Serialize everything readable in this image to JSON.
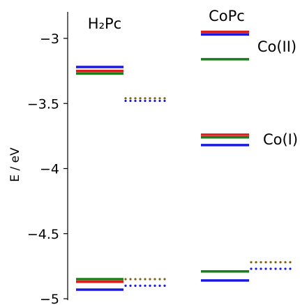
{
  "chart_data": {
    "type": "energy-level-diagram",
    "ylabel": "E / eV",
    "ylim": [
      -5.0,
      -2.8
    ],
    "yticks": [
      {
        "value": -3.0,
        "label": "−3"
      },
      {
        "value": -3.5,
        "label": "−3.5"
      },
      {
        "value": -4.0,
        "label": "−4"
      },
      {
        "value": -4.5,
        "label": "−4.5"
      },
      {
        "value": -5.0,
        "label": "−5"
      }
    ],
    "column_labels": [
      {
        "text": "H₂Pc"
      },
      {
        "text": "CoPc"
      }
    ],
    "annotations": [
      {
        "text": "Co(II)"
      },
      {
        "text": "Co(I)"
      }
    ],
    "colors": {
      "red": "#d62020",
      "green": "#1a7d1a",
      "blue": "#1a1adf",
      "olive": "#806010"
    },
    "levels": [
      {
        "column": "H2Pc",
        "style": "solid",
        "color": "blue",
        "energy": -3.22
      },
      {
        "column": "H2Pc",
        "style": "solid",
        "color": "red",
        "energy": -3.25
      },
      {
        "column": "H2Pc",
        "style": "solid",
        "color": "green",
        "energy": -3.27
      },
      {
        "column": "H2Pc",
        "style": "solid",
        "color": "green",
        "energy": -4.85
      },
      {
        "column": "H2Pc",
        "style": "solid",
        "color": "red",
        "energy": -4.87
      },
      {
        "column": "H2Pc",
        "style": "solid",
        "color": "blue",
        "energy": -4.93
      },
      {
        "column": "H2Pc",
        "style": "dotted",
        "color": "olive",
        "energy": -3.46
      },
      {
        "column": "H2Pc",
        "style": "dotted",
        "color": "blue",
        "energy": -3.48
      },
      {
        "column": "H2Pc",
        "style": "dotted",
        "color": "olive",
        "energy": -4.85
      },
      {
        "column": "H2Pc",
        "style": "dotted",
        "color": "blue",
        "energy": -4.9
      },
      {
        "column": "CoPc",
        "style": "solid",
        "color": "red",
        "energy": -2.95
      },
      {
        "column": "CoPc",
        "style": "solid",
        "color": "blue",
        "energy": -2.97
      },
      {
        "column": "CoPc",
        "style": "solid",
        "color": "green",
        "energy": -3.16
      },
      {
        "column": "CoPc",
        "style": "solid",
        "color": "red",
        "energy": -3.74
      },
      {
        "column": "CoPc",
        "style": "solid",
        "color": "green",
        "energy": -3.76
      },
      {
        "column": "CoPc",
        "style": "solid",
        "color": "blue",
        "energy": -3.82
      },
      {
        "column": "CoPc",
        "style": "solid",
        "color": "green",
        "energy": -4.79
      },
      {
        "column": "CoPc",
        "style": "solid",
        "color": "blue",
        "energy": -4.86
      },
      {
        "column": "CoPc",
        "style": "dotted",
        "color": "olive",
        "energy": -4.72
      },
      {
        "column": "CoPc",
        "style": "dotted",
        "color": "blue",
        "energy": -4.77
      }
    ]
  }
}
